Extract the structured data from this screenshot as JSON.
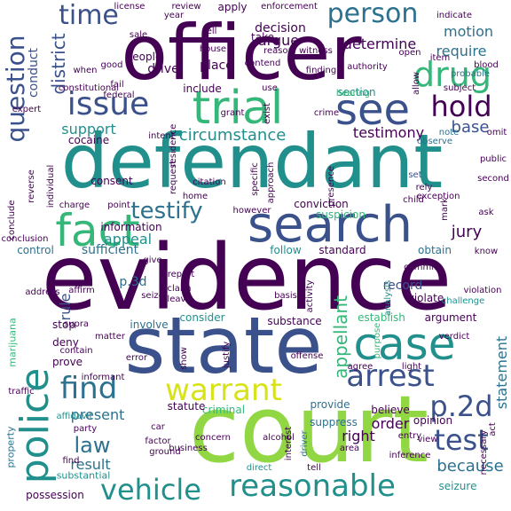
{
  "palette": {
    "purple": "#440154",
    "indigo": "#3b518b",
    "blue": "#2c718e",
    "teal": "#21908d",
    "green": "#35b779",
    "lime": "#90d743",
    "yellow": "#d8e219"
  },
  "words": [
    {
      "text": "officer"
    },
    {
      "text": "defendant"
    },
    {
      "text": "evidence"
    },
    {
      "text": "state"
    },
    {
      "text": "court"
    },
    {
      "text": "search"
    },
    {
      "text": "case"
    },
    {
      "text": "fact"
    },
    {
      "text": "trial"
    },
    {
      "text": "see"
    },
    {
      "text": "drug"
    },
    {
      "text": "hold"
    },
    {
      "text": "issue"
    },
    {
      "text": "time"
    },
    {
      "text": "person"
    },
    {
      "text": "question"
    },
    {
      "text": "police"
    },
    {
      "text": "warrant"
    },
    {
      "text": "arrest"
    },
    {
      "text": "find"
    },
    {
      "text": "reasonable"
    },
    {
      "text": "vehicle"
    },
    {
      "text": "test"
    },
    {
      "text": "p.2d"
    },
    {
      "text": "testify"
    },
    {
      "text": "law"
    },
    {
      "text": "appellant"
    },
    {
      "text": "district"
    },
    {
      "text": "circumstance"
    },
    {
      "text": "motion"
    },
    {
      "text": "require"
    },
    {
      "text": "determine"
    },
    {
      "text": "argue"
    },
    {
      "text": "conduct"
    },
    {
      "text": "testimony"
    },
    {
      "text": "base"
    },
    {
      "text": "support"
    },
    {
      "text": "statement"
    },
    {
      "text": "jury"
    },
    {
      "text": "appeal"
    },
    {
      "text": "present"
    },
    {
      "text": "right"
    },
    {
      "text": "order"
    },
    {
      "text": "because"
    },
    {
      "text": "result"
    },
    {
      "text": "rule"
    },
    {
      "text": "sufficient"
    },
    {
      "text": "control"
    },
    {
      "text": "information"
    },
    {
      "text": "conviction"
    },
    {
      "text": "suspicion"
    },
    {
      "text": "consent"
    },
    {
      "text": "cocaine"
    },
    {
      "text": "record"
    },
    {
      "text": "p.3d"
    },
    {
      "text": "stop"
    },
    {
      "text": "deny"
    },
    {
      "text": "prove"
    },
    {
      "text": "involve"
    },
    {
      "text": "consider"
    },
    {
      "text": "substance"
    },
    {
      "text": "argument"
    },
    {
      "text": "establish"
    },
    {
      "text": "follow"
    },
    {
      "text": "standard"
    },
    {
      "text": "obtain"
    },
    {
      "text": "criminal"
    },
    {
      "text": "statute"
    },
    {
      "text": "provide"
    },
    {
      "text": "believe"
    },
    {
      "text": "opinion"
    },
    {
      "text": "suppress"
    },
    {
      "text": "seizure"
    },
    {
      "text": "possession"
    },
    {
      "text": "substantial"
    },
    {
      "text": "property"
    },
    {
      "text": "marijuana"
    },
    {
      "text": "traffic"
    },
    {
      "text": "place"
    },
    {
      "text": "drive"
    },
    {
      "text": "people"
    },
    {
      "text": "include"
    },
    {
      "text": "use"
    },
    {
      "text": "section"
    },
    {
      "text": "crime"
    },
    {
      "text": "reason"
    },
    {
      "text": "decision"
    },
    {
      "text": "take"
    },
    {
      "text": "review"
    },
    {
      "text": "apply"
    },
    {
      "text": "enforcement"
    },
    {
      "text": "license"
    },
    {
      "text": "year"
    },
    {
      "text": "indicate"
    },
    {
      "text": "item"
    },
    {
      "text": "blood"
    },
    {
      "text": "probable"
    },
    {
      "text": "subject"
    },
    {
      "text": "authority"
    },
    {
      "text": "hearing"
    },
    {
      "text": "observe"
    },
    {
      "text": "note"
    },
    {
      "text": "omit"
    },
    {
      "text": "public"
    },
    {
      "text": "second"
    },
    {
      "text": "set"
    },
    {
      "text": "rely"
    },
    {
      "text": "exception"
    },
    {
      "text": "child"
    },
    {
      "text": "ask"
    },
    {
      "text": "know"
    },
    {
      "text": "commit"
    },
    {
      "text": "violate"
    },
    {
      "text": "violation"
    },
    {
      "text": "challenge"
    },
    {
      "text": "purpose"
    },
    {
      "text": "verdict"
    },
    {
      "text": "agree"
    },
    {
      "text": "light"
    },
    {
      "text": "entry"
    },
    {
      "text": "view"
    },
    {
      "text": "inference"
    },
    {
      "text": "necessary"
    },
    {
      "text": "act"
    },
    {
      "text": "alcohol"
    },
    {
      "text": "interest"
    },
    {
      "text": "driver"
    },
    {
      "text": "area"
    },
    {
      "text": "concern"
    },
    {
      "text": "business"
    },
    {
      "text": "ground"
    },
    {
      "text": "car"
    },
    {
      "text": "factor"
    },
    {
      "text": "party"
    },
    {
      "text": "affidavit"
    },
    {
      "text": "informant"
    },
    {
      "text": "contain"
    },
    {
      "text": "supra"
    },
    {
      "text": "address"
    },
    {
      "text": "affirm"
    },
    {
      "text": "seize"
    },
    {
      "text": "claim"
    },
    {
      "text": "leave"
    },
    {
      "text": "give"
    },
    {
      "text": "report"
    },
    {
      "text": "matter"
    },
    {
      "text": "error"
    },
    {
      "text": "show"
    },
    {
      "text": "justify"
    },
    {
      "text": "offense"
    },
    {
      "text": "basis"
    },
    {
      "text": "activity"
    },
    {
      "text": "analysis"
    },
    {
      "text": "point"
    },
    {
      "text": "charge"
    },
    {
      "text": "conclude"
    },
    {
      "text": "reverse"
    },
    {
      "text": "individual"
    },
    {
      "text": "request"
    },
    {
      "text": "home"
    },
    {
      "text": "citation"
    },
    {
      "text": "residence"
    },
    {
      "text": "intent"
    },
    {
      "text": "specific"
    },
    {
      "text": "approach"
    },
    {
      "text": "presence"
    },
    {
      "text": "federal"
    },
    {
      "text": "expert"
    },
    {
      "text": "constitutional"
    },
    {
      "text": "fail"
    },
    {
      "text": "good"
    },
    {
      "text": "sale"
    },
    {
      "text": "sell"
    },
    {
      "text": "house"
    },
    {
      "text": "witness"
    },
    {
      "text": "finding"
    },
    {
      "text": "contend"
    },
    {
      "text": "open"
    },
    {
      "text": "grant"
    },
    {
      "text": "exist"
    },
    {
      "text": "allow"
    },
    {
      "text": "direct"
    },
    {
      "text": "tell"
    },
    {
      "text": "find"
    },
    {
      "text": "mark"
    },
    {
      "text": "conclusion"
    },
    {
      "text": "when"
    },
    {
      "text": "however"
    },
    {
      "text": "err"
    },
    {
      "text": "soll"
    },
    {
      "text": "approach"
    }
  ]
}
